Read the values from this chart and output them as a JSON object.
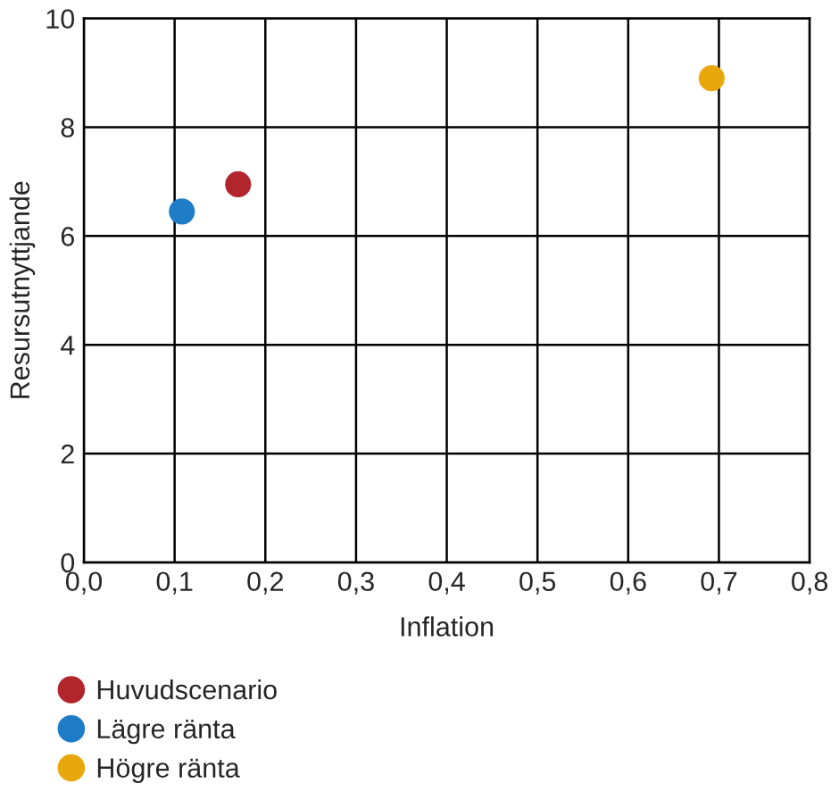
{
  "chart_data": {
    "type": "scatter",
    "xlabel": "Inflation",
    "ylabel": "Resursutnyttjande",
    "series": [
      {
        "name": "Huvudscenario",
        "color": "#b2252d",
        "x": [
          0.17
        ],
        "values": [
          6.95
        ]
      },
      {
        "name": "Lägre ränta",
        "color": "#1f7cc6",
        "x": [
          0.108
        ],
        "values": [
          6.45
        ]
      },
      {
        "name": "Högre ränta",
        "color": "#e8a80c",
        "x": [
          0.692
        ],
        "values": [
          8.9
        ]
      }
    ],
    "xlim": [
      0,
      0.8
    ],
    "ylim": [
      0,
      10
    ],
    "xticks": [
      {
        "value": 0,
        "label": "0,0"
      },
      {
        "value": 0.1,
        "label": "0,1"
      },
      {
        "value": 0.2,
        "label": "0,2"
      },
      {
        "value": 0.3,
        "label": "0,3"
      },
      {
        "value": 0.4,
        "label": "0,4"
      },
      {
        "value": 0.5,
        "label": "0,5"
      },
      {
        "value": 0.6,
        "label": "0,6"
      },
      {
        "value": 0.7,
        "label": "0,7"
      },
      {
        "value": 0.8,
        "label": "0,8"
      }
    ],
    "yticks": [
      0,
      2,
      4,
      6,
      8,
      10
    ],
    "grid": true,
    "legend": "bottom",
    "marker": "circle"
  }
}
